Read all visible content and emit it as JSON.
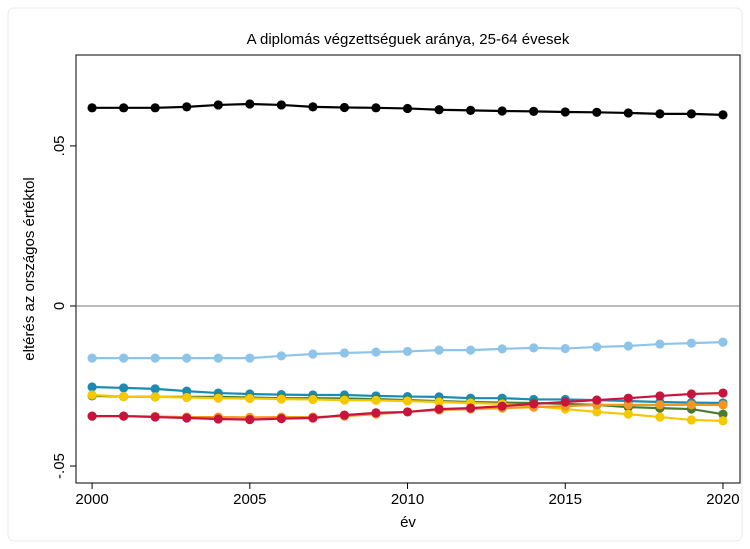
{
  "chart_data": {
    "type": "line",
    "title": "A diplomás végzettséguek aránya, 25-64 évesek",
    "x_label": "év",
    "y_label": "eltérés az országos értéktol",
    "x": [
      2000,
      2001,
      2002,
      2003,
      2004,
      2005,
      2006,
      2007,
      2008,
      2009,
      2010,
      2011,
      2012,
      2013,
      2014,
      2015,
      2016,
      2017,
      2018,
      2019,
      2020
    ],
    "xlim": [
      1999.49,
      2020.54
    ],
    "xticks": [
      2000,
      2005,
      2010,
      2015,
      2020
    ],
    "ylim": [
      -0.0553,
      0.0784
    ],
    "yticks": [
      {
        "value": -0.05,
        "label": "-.05"
      },
      0,
      {
        "value": 0.05,
        "label": ".05"
      }
    ],
    "yline": 0,
    "series": [
      {
        "color": "#000000",
        "values": [
          0.0619,
          0.0619,
          0.0619,
          0.0622,
          0.0628,
          0.0631,
          0.0628,
          0.0622,
          0.062,
          0.0619,
          0.0617,
          0.0613,
          0.0611,
          0.0609,
          0.0608,
          0.0606,
          0.0605,
          0.0603,
          0.06,
          0.06,
          0.0597
        ]
      },
      {
        "color": "#8ec4ea",
        "values": [
          -0.0163,
          -0.0163,
          -0.0163,
          -0.0163,
          -0.0163,
          -0.0163,
          -0.0156,
          -0.015,
          -0.0147,
          -0.0144,
          -0.0142,
          -0.0138,
          -0.0138,
          -0.0134,
          -0.0131,
          -0.0133,
          -0.0128,
          -0.0125,
          -0.0119,
          -0.0116,
          -0.0113
        ]
      },
      {
        "color": "#1a8cb4",
        "values": [
          -0.0253,
          -0.0256,
          -0.0259,
          -0.0266,
          -0.0272,
          -0.0275,
          -0.0277,
          -0.0278,
          -0.0278,
          -0.0281,
          -0.0283,
          -0.0284,
          -0.0288,
          -0.0288,
          -0.0292,
          -0.0292,
          -0.0294,
          -0.0297,
          -0.03,
          -0.0302,
          -0.0303
        ]
      },
      {
        "color": "#4b7a2e",
        "values": [
          -0.0281,
          -0.0283,
          -0.0284,
          -0.0284,
          -0.0284,
          -0.0286,
          -0.0288,
          -0.0288,
          -0.0289,
          -0.0291,
          -0.0294,
          -0.0297,
          -0.03,
          -0.0302,
          -0.0303,
          -0.0306,
          -0.0309,
          -0.0316,
          -0.0319,
          -0.0322,
          -0.0338
        ]
      },
      {
        "color": "#f5c800",
        "values": [
          -0.0278,
          -0.0283,
          -0.0284,
          -0.0286,
          -0.0288,
          -0.0289,
          -0.0291,
          -0.0292,
          -0.0294,
          -0.0295,
          -0.0297,
          -0.03,
          -0.0303,
          -0.0306,
          -0.0313,
          -0.0322,
          -0.0331,
          -0.0338,
          -0.0347,
          -0.0356,
          -0.0359
        ]
      },
      {
        "color": "#f39521",
        "values": [
          -0.0344,
          -0.0344,
          -0.0345,
          -0.0347,
          -0.0347,
          -0.0348,
          -0.0347,
          -0.0347,
          -0.0344,
          -0.0338,
          -0.0331,
          -0.0325,
          -0.0322,
          -0.0319,
          -0.0316,
          -0.0313,
          -0.0309,
          -0.0309,
          -0.0309,
          -0.0309,
          -0.0309
        ]
      },
      {
        "color": "#c8143c",
        "values": [
          -0.0344,
          -0.0344,
          -0.0347,
          -0.035,
          -0.0353,
          -0.0355,
          -0.0352,
          -0.035,
          -0.0341,
          -0.0334,
          -0.0331,
          -0.0322,
          -0.0319,
          -0.0313,
          -0.0306,
          -0.03,
          -0.0294,
          -0.0288,
          -0.0281,
          -0.0275,
          -0.0272
        ]
      }
    ]
  }
}
